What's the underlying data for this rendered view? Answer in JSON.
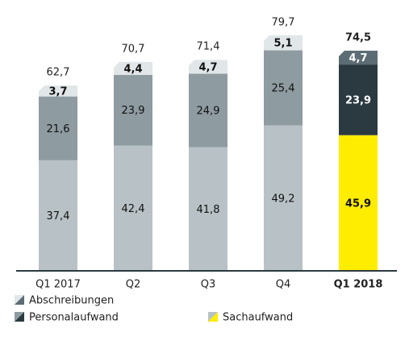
{
  "chart_data": {
    "type": "stacked-bar",
    "categories": [
      "Q1 2017",
      "Q2",
      "Q3",
      "Q4",
      "Q1 2018"
    ],
    "highlight": 4,
    "series": [
      {
        "name": "Sachaufwand",
        "colors": [
          "#b8c2c6",
          "#b8c2c6",
          "#b8c2c6",
          "#b8c2c6",
          "#ffed00"
        ],
        "values": [
          37.4,
          42.4,
          41.8,
          49.2,
          45.9
        ],
        "value_labels": [
          "37,4",
          "42,4",
          "41,8",
          "49,2",
          "45,9"
        ]
      },
      {
        "name": "Personalaufwand",
        "colors": [
          "#8e9ba1",
          "#8e9ba1",
          "#8e9ba1",
          "#8e9ba1",
          "#2b3a41"
        ],
        "values": [
          21.6,
          23.9,
          24.9,
          25.4,
          23.9
        ],
        "value_labels": [
          "21,6",
          "23,9",
          "24,9",
          "25,4",
          "23,9"
        ]
      },
      {
        "name": "Abschreibungen",
        "colors": [
          "#e1e6e8",
          "#e1e6e8",
          "#e1e6e8",
          "#e1e6e8",
          "#5b6c74"
        ],
        "values": [
          3.7,
          4.4,
          4.7,
          5.1,
          4.7
        ],
        "value_labels": [
          "3,7",
          "4,4",
          "4,7",
          "5,1",
          "4,7"
        ]
      }
    ],
    "totals": [
      62.7,
      70.7,
      71.4,
      79.7,
      74.5
    ],
    "total_labels": [
      "62,7",
      "70,7",
      "71,4",
      "79,7",
      "74,5"
    ],
    "ylim": [
      0,
      90
    ]
  }
}
